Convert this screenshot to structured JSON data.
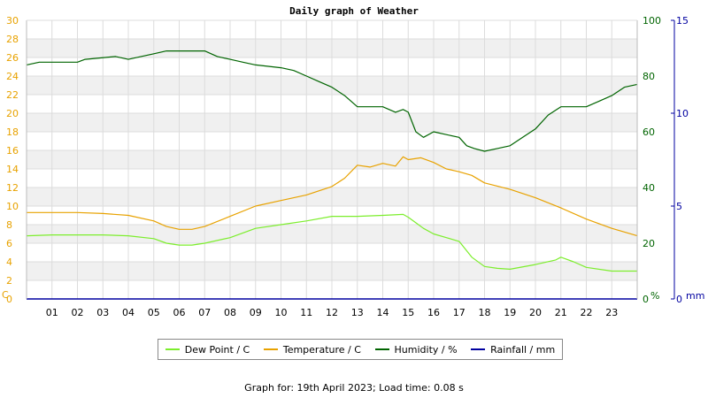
{
  "chart_data": {
    "type": "line",
    "title": "Daily graph of Weather",
    "x_ticks": [
      "01",
      "02",
      "03",
      "04",
      "05",
      "06",
      "07",
      "08",
      "09",
      "10",
      "11",
      "12",
      "13",
      "14",
      "15",
      "16",
      "17",
      "18",
      "19",
      "20",
      "21",
      "22",
      "23"
    ],
    "xlim": [
      0,
      24
    ],
    "grid": true,
    "legend_placement": "bottom",
    "axes": {
      "left": {
        "unit_label": "C",
        "ylim": [
          0,
          30
        ],
        "ticks": [
          0,
          2,
          4,
          6,
          8,
          10,
          12,
          14,
          16,
          18,
          20,
          22,
          24,
          26,
          28,
          30
        ],
        "color": "#E8A200"
      },
      "right1": {
        "unit_label": "%",
        "ylim": [
          0,
          100
        ],
        "ticks": [
          0,
          20,
          40,
          60,
          80,
          100
        ],
        "color": "#006400"
      },
      "right2": {
        "unit_label": "mm",
        "ylim": [
          0,
          15
        ],
        "ticks": [
          0,
          5,
          10,
          15
        ],
        "color": "#0000A0"
      }
    },
    "series": [
      {
        "name": "Dew Point / C",
        "axis": "left",
        "color": "#7CEE2C",
        "x": [
          0,
          1,
          2,
          3,
          4,
          5,
          5.5,
          6,
          6.5,
          7,
          8,
          9,
          10,
          11,
          12,
          13,
          14,
          14.8,
          15,
          15.3,
          15.6,
          16,
          16.5,
          17,
          17.5,
          18,
          18.5,
          19,
          20,
          20.8,
          21,
          21.5,
          22,
          23,
          24
        ],
        "y": [
          6.8,
          6.9,
          6.9,
          6.9,
          6.8,
          6.5,
          6.0,
          5.8,
          5.8,
          6.0,
          6.6,
          7.6,
          8.0,
          8.4,
          8.9,
          8.9,
          9.0,
          9.1,
          8.8,
          8.2,
          7.6,
          7.0,
          6.6,
          6.2,
          4.5,
          3.5,
          3.3,
          3.2,
          3.7,
          4.2,
          4.5,
          4.0,
          3.4,
          3.0,
          3.0
        ]
      },
      {
        "name": "Temperature / C",
        "axis": "left",
        "color": "#E8A200",
        "x": [
          0,
          1,
          2,
          3,
          4,
          5,
          5.5,
          6,
          6.5,
          7,
          8,
          9,
          10,
          11,
          12,
          12.5,
          13,
          13.5,
          14,
          14.5,
          14.8,
          15,
          15.5,
          16,
          16.5,
          17,
          17.5,
          18,
          19,
          20,
          21,
          22,
          23,
          24
        ],
        "y": [
          9.3,
          9.3,
          9.3,
          9.2,
          9.0,
          8.4,
          7.8,
          7.5,
          7.5,
          7.8,
          8.9,
          10.0,
          10.6,
          11.2,
          12.1,
          13.0,
          14.4,
          14.2,
          14.6,
          14.3,
          15.3,
          15.0,
          15.2,
          14.7,
          14.0,
          13.7,
          13.3,
          12.5,
          11.8,
          10.9,
          9.8,
          8.6,
          7.6,
          6.8
        ]
      },
      {
        "name": "Humidity / %",
        "axis": "right1",
        "color": "#006400",
        "x": [
          0,
          0.5,
          2,
          2.3,
          3.5,
          4,
          4.5,
          5,
          5.5,
          7,
          7.5,
          8,
          8.5,
          9,
          10,
          10.5,
          11,
          11.5,
          12,
          12.5,
          13,
          13.5,
          14,
          14.5,
          14.8,
          15,
          15.3,
          15.6,
          16,
          16.5,
          17,
          17.3,
          17.6,
          18,
          18.5,
          19,
          19.5,
          20,
          20.5,
          21,
          21.5,
          22,
          22.5,
          23,
          23.5,
          24
        ],
        "y": [
          84,
          85,
          85,
          86,
          87,
          86,
          87,
          88,
          89,
          89,
          87,
          86,
          85,
          84,
          83,
          82,
          80,
          78,
          76,
          73,
          69,
          69,
          69,
          67,
          68,
          67,
          60,
          58,
          60,
          59,
          58,
          55,
          54,
          53,
          54,
          55,
          58,
          61,
          66,
          69,
          69,
          69,
          71,
          73,
          76,
          77
        ]
      },
      {
        "name": "Rainfall / mm",
        "axis": "right2",
        "color": "#0000A0",
        "x": [
          0,
          24
        ],
        "y": [
          0,
          0
        ]
      }
    ]
  },
  "legend": [
    {
      "label": "Dew Point / C",
      "color": "#7CEE2C"
    },
    {
      "label": "Temperature / C",
      "color": "#E8A200"
    },
    {
      "label": "Humidity / %",
      "color": "#006400"
    },
    {
      "label": "Rainfall / mm",
      "color": "#0000A0"
    }
  ],
  "footer": "Graph for: 19th April 2023; Load time: 0.08 s"
}
